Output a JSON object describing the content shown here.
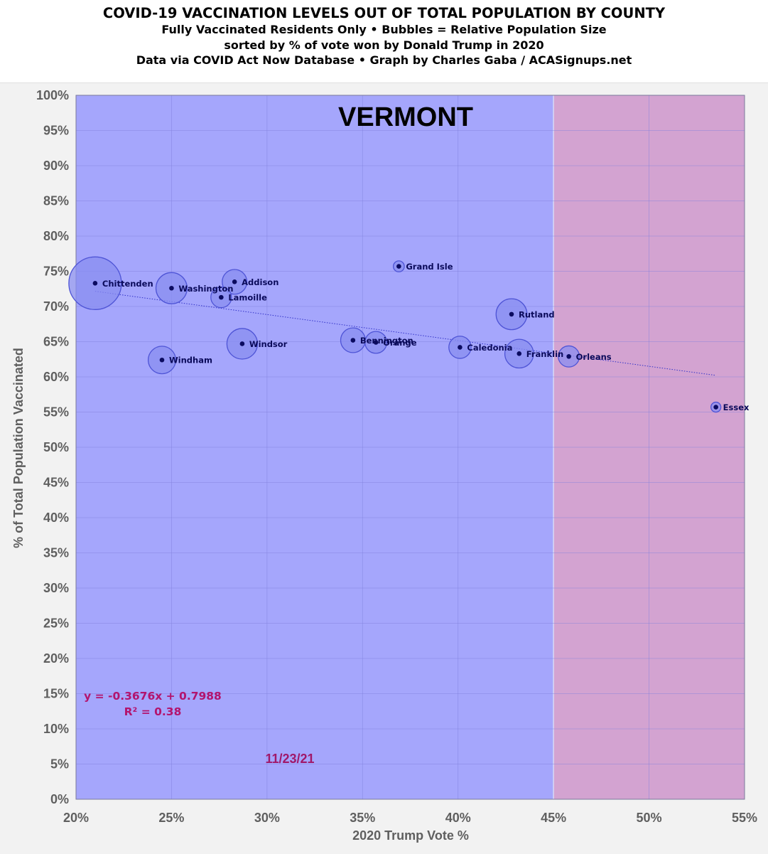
{
  "titles": {
    "line1": "COVID-19 VACCINATION LEVELS OUT OF TOTAL POPULATION BY COUNTY",
    "line2": "Fully Vaccinated Residents Only • Bubbles = Relative Population Size",
    "line3": "sorted by % of vote won by Donald Trump in 2020",
    "line4": "Data via COVID Act Now Database • Graph by Charles Gaba / ACASignups.net"
  },
  "colors": {
    "blue_zone": "#a5a6fc",
    "red_zone": "#d3a3d1",
    "bubble_fill": "#8a8ef0",
    "bubble_stroke": "#4e54d6",
    "dot": "#0b0b60",
    "trendline": "#3232c8",
    "equation": "#b3146e",
    "date": "#a0186a"
  },
  "chart_data": {
    "type": "scatter",
    "title": "VERMONT",
    "xlabel": "2020 Trump Vote %",
    "ylabel": "% of Total Population Vaccinated",
    "xlim": [
      0.2,
      0.55
    ],
    "ylim": [
      0,
      1
    ],
    "x_ticks": [
      {
        "value": 0.2,
        "label": "20%"
      },
      {
        "value": 0.25,
        "label": "25%"
      },
      {
        "value": 0.3,
        "label": "30%"
      },
      {
        "value": 0.35,
        "label": "35%"
      },
      {
        "value": 0.4,
        "label": "40%"
      },
      {
        "value": 0.45,
        "label": "45%"
      },
      {
        "value": 0.5,
        "label": "50%"
      },
      {
        "value": 0.55,
        "label": "55%"
      }
    ],
    "y_ticks": [
      {
        "value": 0.0,
        "label": "0%"
      },
      {
        "value": 0.05,
        "label": "5%"
      },
      {
        "value": 0.1,
        "label": "10%"
      },
      {
        "value": 0.15,
        "label": "15%"
      },
      {
        "value": 0.2,
        "label": "20%"
      },
      {
        "value": 0.25,
        "label": "25%"
      },
      {
        "value": 0.3,
        "label": "30%"
      },
      {
        "value": 0.35,
        "label": "35%"
      },
      {
        "value": 0.4,
        "label": "40%"
      },
      {
        "value": 0.45,
        "label": "45%"
      },
      {
        "value": 0.5,
        "label": "50%"
      },
      {
        "value": 0.55,
        "label": "55%"
      },
      {
        "value": 0.6,
        "label": "60%"
      },
      {
        "value": 0.65,
        "label": "65%"
      },
      {
        "value": 0.7,
        "label": "70%"
      },
      {
        "value": 0.75,
        "label": "75%"
      },
      {
        "value": 0.8,
        "label": "80%"
      },
      {
        "value": 0.85,
        "label": "85%"
      },
      {
        "value": 0.9,
        "label": "90%"
      },
      {
        "value": 0.95,
        "label": "95%"
      },
      {
        "value": 1.0,
        "label": "100%"
      }
    ],
    "grid": true,
    "zones": [
      {
        "x_from": 0.2,
        "x_to": 0.45,
        "color_key": "blue_zone"
      },
      {
        "x_from": 0.45,
        "x_to": 0.55,
        "color_key": "red_zone"
      }
    ],
    "points": [
      {
        "name": "Chittenden",
        "x": 0.21,
        "y": 0.733,
        "size": 168000
      },
      {
        "name": "Washington",
        "x": 0.25,
        "y": 0.726,
        "size": 59000
      },
      {
        "name": "Addison",
        "x": 0.283,
        "y": 0.735,
        "size": 37000
      },
      {
        "name": "Lamoille",
        "x": 0.276,
        "y": 0.713,
        "size": 26000
      },
      {
        "name": "Windsor",
        "x": 0.287,
        "y": 0.647,
        "size": 57000
      },
      {
        "name": "Windham",
        "x": 0.245,
        "y": 0.624,
        "size": 46000
      },
      {
        "name": "Grand Isle",
        "x": 0.369,
        "y": 0.757,
        "size": 7300
      },
      {
        "name": "Bennington",
        "x": 0.345,
        "y": 0.652,
        "size": 37000
      },
      {
        "name": "Orange",
        "x": 0.357,
        "y": 0.649,
        "size": 29000
      },
      {
        "name": "Caledonia",
        "x": 0.401,
        "y": 0.642,
        "size": 30000
      },
      {
        "name": "Rutland",
        "x": 0.428,
        "y": 0.689,
        "size": 58000
      },
      {
        "name": "Franklin",
        "x": 0.432,
        "y": 0.633,
        "size": 50000
      },
      {
        "name": "Orleans",
        "x": 0.458,
        "y": 0.629,
        "size": 27000
      },
      {
        "name": "Essex",
        "x": 0.535,
        "y": 0.557,
        "size": 6000
      }
    ],
    "trendline": {
      "slope": -0.3676,
      "intercept": 0.7988,
      "x_from": 0.21,
      "x_to": 0.535
    },
    "annotations": {
      "equation": "y = -0.3676x + 0.7988",
      "r_squared": "R² = 0.38",
      "date": "11/23/21"
    }
  }
}
